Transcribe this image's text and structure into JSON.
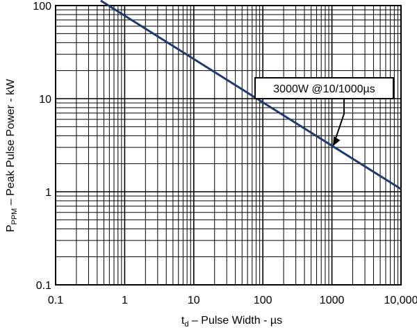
{
  "chart_data": {
    "type": "line",
    "x_scale": "log",
    "y_scale": "log",
    "xlim": [
      0.1,
      10000
    ],
    "ylim": [
      0.1,
      100
    ],
    "x_ticks": [
      "0.1",
      "1",
      "10",
      "100",
      "1000",
      "10,000"
    ],
    "y_ticks": [
      "0.1",
      "1",
      "10",
      "100"
    ],
    "xlabel": {
      "main": "t",
      "sub": "d",
      "rest": " –  Pulse Width  - µs"
    },
    "ylabel": {
      "main": "P",
      "sub": "PPM",
      "rest": "  –  Peak Pulse Power - kW"
    },
    "grid": true,
    "series": [
      {
        "color": "#1f3a6e",
        "x": [
          0.45,
          10000
        ],
        "y": [
          113,
          1.07
        ]
      }
    ],
    "annotation": {
      "text": "3000W  @10/1000µs",
      "point": {
        "x": 1000,
        "y": 3
      }
    }
  }
}
